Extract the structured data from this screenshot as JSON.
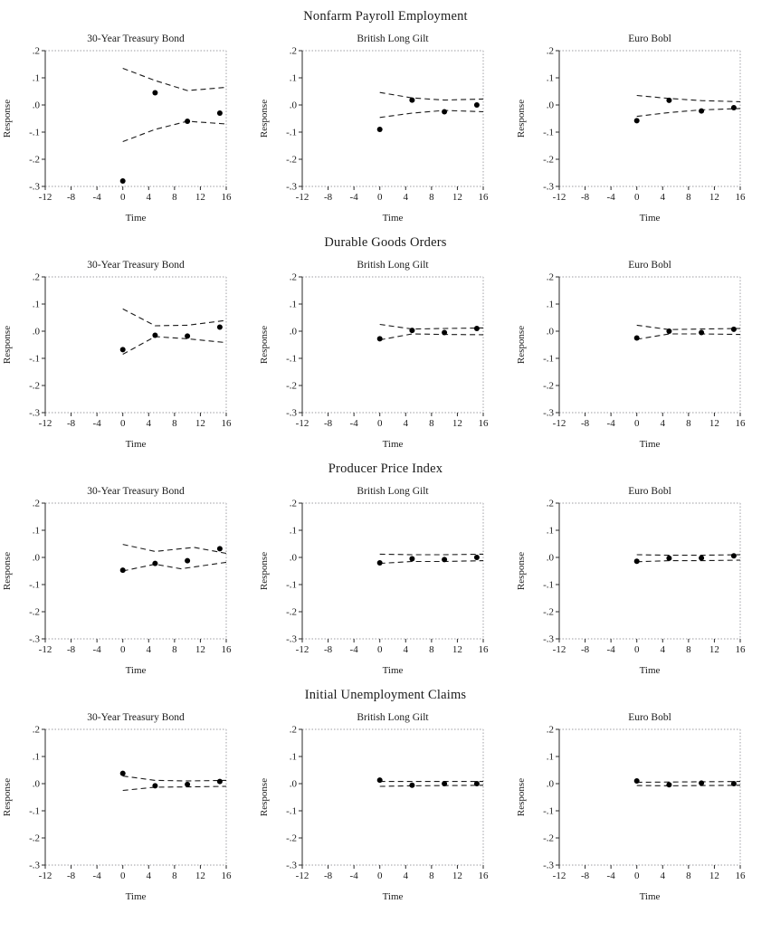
{
  "rows": [
    {
      "title": "Nonfarm Payroll Employment"
    },
    {
      "title": "Durable Goods Orders"
    },
    {
      "title": "Producer Price Index"
    },
    {
      "title": "Initial Unemployment Claims"
    }
  ],
  "axes": {
    "xlabel": "Time",
    "ylabel": "Response",
    "xlim": [
      -12,
      16
    ],
    "ylim": [
      -0.3,
      0.2
    ],
    "xticks": [
      -12,
      -8,
      -4,
      0,
      4,
      8,
      12,
      16
    ],
    "ytick_values": [
      0.2,
      0.1,
      0.0,
      -0.1,
      -0.2,
      -0.3
    ],
    "ytick_labels": [
      ".2",
      ".1",
      ".0",
      "-.1",
      "-.2",
      "-.3"
    ],
    "grid": false,
    "legend": "none"
  },
  "style": {
    "point_color": "#000000",
    "band_color": "#1a1a1a",
    "axis_color": "#2a2a2a",
    "frame_color": "#b0b0b5",
    "text_color": "#1a1a1a",
    "background": "#ffffff"
  },
  "chart_data": [
    {
      "type": "scatter",
      "group": "Nonfarm Payroll Employment",
      "title": "30-Year Treasury Bond",
      "points": [
        [
          0,
          -0.28
        ],
        [
          5,
          0.045
        ],
        [
          10,
          -0.06
        ],
        [
          15,
          -0.03
        ]
      ],
      "upper_band": [
        [
          0,
          0.135
        ],
        [
          5,
          0.09
        ],
        [
          10,
          0.053
        ],
        [
          16,
          0.065
        ]
      ],
      "lower_band": [
        [
          0,
          -0.135
        ],
        [
          5,
          -0.09
        ],
        [
          10,
          -0.06
        ],
        [
          16,
          -0.07
        ]
      ]
    },
    {
      "type": "scatter",
      "group": "Nonfarm Payroll Employment",
      "title": "British Long Gilt",
      "points": [
        [
          0,
          -0.09
        ],
        [
          5,
          0.018
        ],
        [
          10,
          -0.025
        ],
        [
          15,
          0.0
        ]
      ],
      "upper_band": [
        [
          0,
          0.046
        ],
        [
          5,
          0.026
        ],
        [
          10,
          0.018
        ],
        [
          16,
          0.022
        ]
      ],
      "lower_band": [
        [
          0,
          -0.046
        ],
        [
          5,
          -0.03
        ],
        [
          10,
          -0.02
        ],
        [
          16,
          -0.025
        ]
      ]
    },
    {
      "type": "scatter",
      "group": "Nonfarm Payroll Employment",
      "title": "Euro Bobl",
      "points": [
        [
          0,
          -0.058
        ],
        [
          5,
          0.017
        ],
        [
          10,
          -0.022
        ],
        [
          15,
          -0.01
        ]
      ],
      "upper_band": [
        [
          0,
          0.035
        ],
        [
          5,
          0.024
        ],
        [
          10,
          0.016
        ],
        [
          16,
          0.012
        ]
      ],
      "lower_band": [
        [
          0,
          -0.042
        ],
        [
          5,
          -0.028
        ],
        [
          10,
          -0.018
        ],
        [
          16,
          -0.013
        ]
      ]
    },
    {
      "type": "scatter",
      "group": "Durable Goods Orders",
      "title": "30-Year Treasury Bond",
      "points": [
        [
          0,
          -0.068
        ],
        [
          5,
          -0.015
        ],
        [
          10,
          -0.018
        ],
        [
          15,
          0.015
        ]
      ],
      "upper_band": [
        [
          0,
          0.082
        ],
        [
          5,
          0.02
        ],
        [
          10,
          0.022
        ],
        [
          16,
          0.04
        ]
      ],
      "lower_band": [
        [
          0,
          -0.085
        ],
        [
          5,
          -0.02
        ],
        [
          10,
          -0.028
        ],
        [
          16,
          -0.042
        ]
      ]
    },
    {
      "type": "scatter",
      "group": "Durable Goods Orders",
      "title": "British Long Gilt",
      "points": [
        [
          0,
          -0.028
        ],
        [
          5,
          0.003
        ],
        [
          10,
          -0.005
        ],
        [
          15,
          0.01
        ]
      ],
      "upper_band": [
        [
          0,
          0.025
        ],
        [
          5,
          0.008
        ],
        [
          10,
          0.01
        ],
        [
          16,
          0.012
        ]
      ],
      "lower_band": [
        [
          0,
          -0.032
        ],
        [
          5,
          -0.01
        ],
        [
          10,
          -0.012
        ],
        [
          16,
          -0.013
        ]
      ]
    },
    {
      "type": "scatter",
      "group": "Durable Goods Orders",
      "title": "Euro Bobl",
      "points": [
        [
          0,
          -0.025
        ],
        [
          5,
          0.0
        ],
        [
          10,
          -0.005
        ],
        [
          15,
          0.007
        ]
      ],
      "upper_band": [
        [
          0,
          0.022
        ],
        [
          5,
          0.006
        ],
        [
          10,
          0.008
        ],
        [
          16,
          0.01
        ]
      ],
      "lower_band": [
        [
          0,
          -0.03
        ],
        [
          5,
          -0.01
        ],
        [
          10,
          -0.01
        ],
        [
          16,
          -0.012
        ]
      ]
    },
    {
      "type": "scatter",
      "group": "Producer Price Index",
      "title": "30-Year Treasury Bond",
      "points": [
        [
          0,
          -0.047
        ],
        [
          5,
          -0.022
        ],
        [
          10,
          -0.012
        ],
        [
          15,
          0.032
        ]
      ],
      "upper_band": [
        [
          0,
          0.048
        ],
        [
          5,
          0.022
        ],
        [
          11,
          0.037
        ],
        [
          16,
          0.015
        ]
      ],
      "lower_band": [
        [
          0,
          -0.05
        ],
        [
          5,
          -0.025
        ],
        [
          9,
          -0.042
        ],
        [
          16,
          -0.018
        ]
      ]
    },
    {
      "type": "scatter",
      "group": "Producer Price Index",
      "title": "British Long Gilt",
      "points": [
        [
          0,
          -0.02
        ],
        [
          5,
          -0.005
        ],
        [
          10,
          -0.008
        ],
        [
          15,
          0.0
        ]
      ],
      "upper_band": [
        [
          0,
          0.012
        ],
        [
          5,
          0.01
        ],
        [
          10,
          0.01
        ],
        [
          16,
          0.012
        ]
      ],
      "lower_band": [
        [
          0,
          -0.022
        ],
        [
          5,
          -0.015
        ],
        [
          10,
          -0.015
        ],
        [
          16,
          -0.012
        ]
      ]
    },
    {
      "type": "scatter",
      "group": "Producer Price Index",
      "title": "Euro Bobl",
      "points": [
        [
          0,
          -0.014
        ],
        [
          5,
          -0.003
        ],
        [
          10,
          -0.002
        ],
        [
          15,
          0.006
        ]
      ],
      "upper_band": [
        [
          0,
          0.01
        ],
        [
          5,
          0.008
        ],
        [
          10,
          0.008
        ],
        [
          16,
          0.01
        ]
      ],
      "lower_band": [
        [
          0,
          -0.016
        ],
        [
          5,
          -0.012
        ],
        [
          10,
          -0.012
        ],
        [
          16,
          -0.01
        ]
      ]
    },
    {
      "type": "scatter",
      "group": "Initial Unemployment Claims",
      "title": "30-Year Treasury Bond",
      "points": [
        [
          0,
          0.038
        ],
        [
          5,
          -0.008
        ],
        [
          10,
          -0.003
        ],
        [
          15,
          0.008
        ]
      ],
      "upper_band": [
        [
          0,
          0.028
        ],
        [
          5,
          0.012
        ],
        [
          10,
          0.01
        ],
        [
          16,
          0.012
        ]
      ],
      "lower_band": [
        [
          0,
          -0.025
        ],
        [
          5,
          -0.013
        ],
        [
          10,
          -0.012
        ],
        [
          16,
          -0.01
        ]
      ]
    },
    {
      "type": "scatter",
      "group": "Initial Unemployment Claims",
      "title": "British Long Gilt",
      "points": [
        [
          0,
          0.013
        ],
        [
          5,
          -0.006
        ],
        [
          10,
          0.0
        ],
        [
          15,
          0.0
        ]
      ],
      "upper_band": [
        [
          0,
          0.008
        ],
        [
          5,
          0.008
        ],
        [
          16,
          0.008
        ]
      ],
      "lower_band": [
        [
          0,
          -0.01
        ],
        [
          5,
          -0.008
        ],
        [
          16,
          -0.006
        ]
      ]
    },
    {
      "type": "scatter",
      "group": "Initial Unemployment Claims",
      "title": "Euro Bobl",
      "points": [
        [
          0,
          0.01
        ],
        [
          5,
          -0.004
        ],
        [
          10,
          0.002
        ],
        [
          15,
          0.0
        ]
      ],
      "upper_band": [
        [
          0,
          0.005
        ],
        [
          5,
          0.006
        ],
        [
          16,
          0.008
        ]
      ],
      "lower_band": [
        [
          0,
          -0.007
        ],
        [
          5,
          -0.008
        ],
        [
          16,
          -0.006
        ]
      ]
    }
  ]
}
